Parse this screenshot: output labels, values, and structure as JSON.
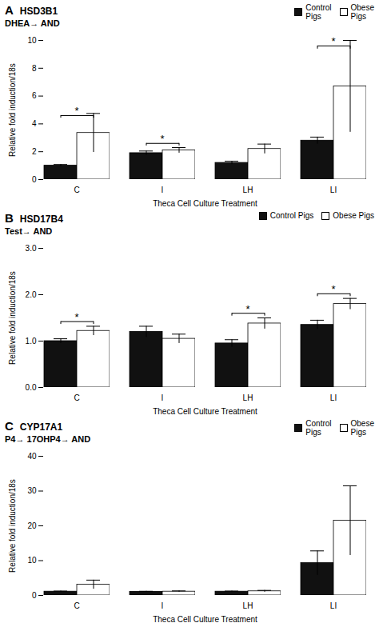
{
  "chart_data": [
    {
      "type": "bar",
      "panel_label": "A",
      "title": "HSD3B1",
      "subtitle": "DHEA→ AND",
      "xlabel": "Theca Cell Culture Treatment",
      "ylabel": "Relative fold induction/18s",
      "categories": [
        "C",
        "I",
        "LH",
        "LI"
      ],
      "series": [
        {
          "name": "Control\nPigs",
          "color": "#111111",
          "values": [
            1.0,
            1.9,
            1.2,
            2.8
          ],
          "errors": [
            0.08,
            0.15,
            0.12,
            0.25
          ]
        },
        {
          "name": "Obese\nPigs",
          "color": "#ffffff",
          "values": [
            3.35,
            2.1,
            2.2,
            6.7
          ],
          "errors": [
            1.4,
            0.2,
            0.35,
            3.3
          ]
        }
      ],
      "ylim": [
        0,
        10
      ],
      "yticks": [
        0,
        2,
        4,
        6,
        8,
        10
      ],
      "legend": "upper right",
      "annotations": [
        {
          "text": "*",
          "category": "C",
          "y": 4.6,
          "tick": 0.18
        },
        {
          "text": "*",
          "category": "I",
          "y": 2.6,
          "tick": 0.18
        },
        {
          "text": "*",
          "category": "LI",
          "y": 9.6,
          "tick": 0.22
        }
      ]
    },
    {
      "type": "bar",
      "panel_label": "B",
      "title": "HSD17B4",
      "subtitle": "Test→ AND",
      "xlabel": "Theca Cell Culture Treatment",
      "ylabel": "Relative fold induction/18s",
      "categories": [
        "C",
        "I",
        "LH",
        "LI"
      ],
      "series": [
        {
          "name": "Control Pigs",
          "color": "#111111",
          "values": [
            1.0,
            1.2,
            0.95,
            1.35
          ],
          "errors": [
            0.05,
            0.12,
            0.08,
            0.1
          ]
        },
        {
          "name": "Obese Pigs",
          "color": "#ffffff",
          "values": [
            1.22,
            1.05,
            1.38,
            1.8
          ],
          "errors": [
            0.1,
            0.1,
            0.12,
            0.12
          ]
        }
      ],
      "ylim": [
        0,
        3
      ],
      "yticks": [
        0,
        1,
        2,
        3
      ],
      "legend": "upper right",
      "annotations": [
        {
          "text": "*",
          "category": "C",
          "y": 1.42,
          "tick": 0.06
        },
        {
          "text": "*",
          "category": "LH",
          "y": 1.6,
          "tick": 0.06
        },
        {
          "text": "*",
          "category": "LI",
          "y": 2.02,
          "tick": 0.06
        }
      ]
    },
    {
      "type": "bar",
      "panel_label": "C",
      "title": "CYP17A1",
      "subtitle": "P4→ 17OHP4→ AND",
      "xlabel": "Theca Cell Culture Treatment",
      "ylabel": "Relative fold induction/18s",
      "categories": [
        "C",
        "I",
        "LH",
        "LI"
      ],
      "series": [
        {
          "name": "Control\nPigs",
          "color": "#111111",
          "values": [
            1.1,
            1.05,
            1.1,
            9.3
          ],
          "errors": [
            0.15,
            0.15,
            0.15,
            3.5
          ]
        },
        {
          "name": "Obese\nPigs",
          "color": "#ffffff",
          "values": [
            3.1,
            1.1,
            1.2,
            21.5
          ],
          "errors": [
            1.3,
            0.2,
            0.25,
            10.0
          ]
        }
      ],
      "ylim": [
        0,
        40
      ],
      "yticks": [
        0,
        10,
        20,
        30,
        40
      ],
      "legend": "upper right",
      "annotations": []
    }
  ]
}
